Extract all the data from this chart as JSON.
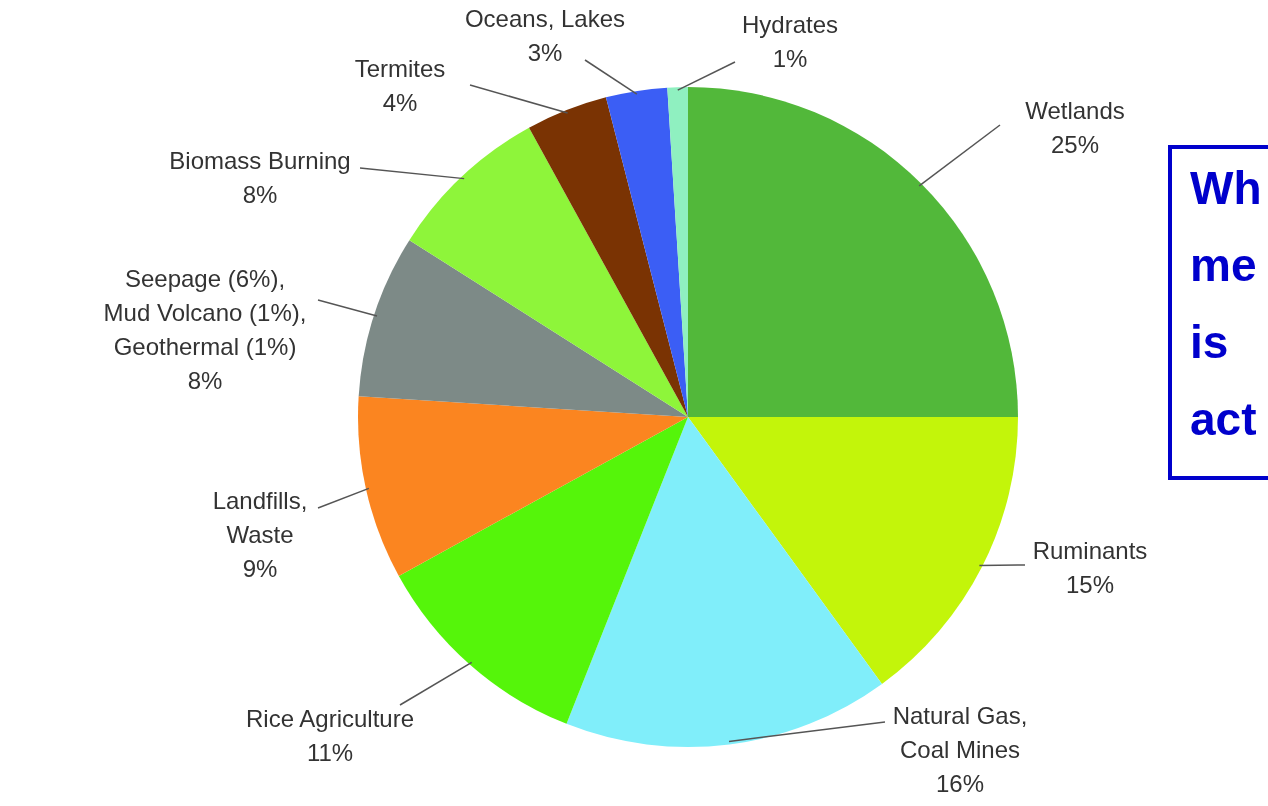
{
  "chart_data": {
    "type": "pie",
    "categories": [
      "Wetlands",
      "Ruminants",
      "Natural Gas,\nCoal Mines",
      "Rice Agriculture",
      "Landfills,\nWaste",
      "Seepage (6%),\nMud Volcano (1%),\nGeothermal (1%)",
      "Biomass Burning",
      "Termites",
      "Oceans, Lakes",
      "Hydrates"
    ],
    "values": [
      25,
      15,
      16,
      11,
      9,
      8,
      8,
      4,
      3,
      1
    ],
    "value_labels": [
      "25%",
      "15%",
      "16%",
      "11%",
      "9%",
      "8%",
      "8%",
      "4%",
      "3%",
      "1%"
    ],
    "colors": [
      "#52b83a",
      "#c3f50a",
      "#80eefa",
      "#55f50a",
      "#fb8520",
      "#7d8a87",
      "#8ef53a",
      "#7a3303",
      "#3b5ef5",
      "#8ff0c0"
    ],
    "annotations": [
      "Wh\nme\nis\nact"
    ]
  }
}
